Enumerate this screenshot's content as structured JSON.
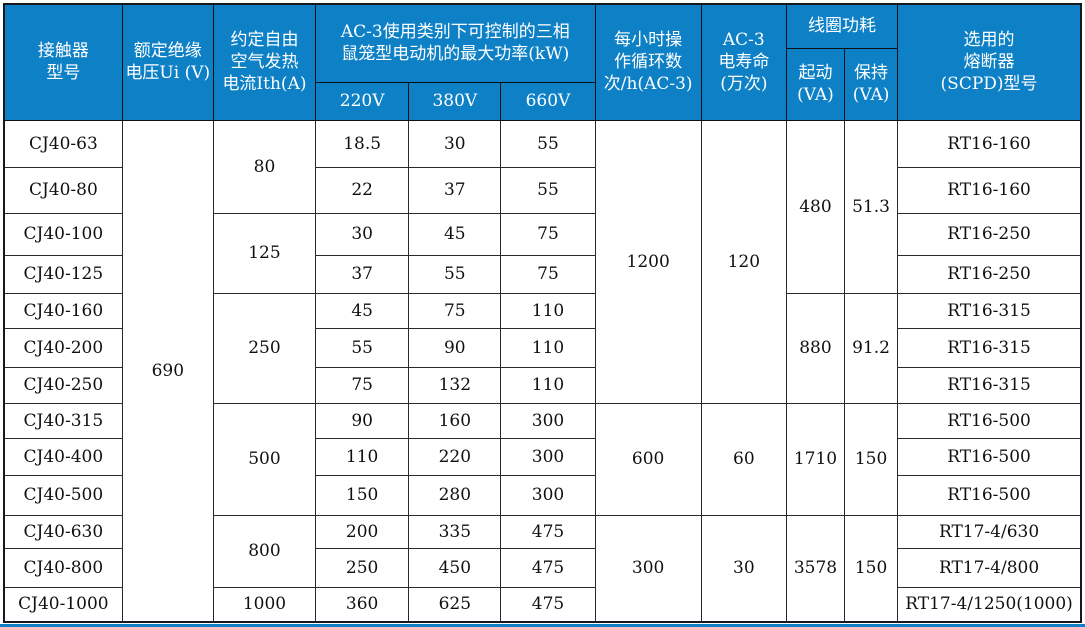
{
  "colors": {
    "header_bg": "#0e81c6",
    "header_text": "#ffffff",
    "grid_line": "#2a2a2a",
    "body_text": "#101010",
    "bottom_accent_line": "#0e81c6"
  },
  "table": {
    "title_semantic": "CJ40 contactor specification table",
    "header": [
      [
        {
          "text": "接触器\n型号",
          "rowspan": 3,
          "name": "col-contactor-model"
        },
        {
          "text": "额定绝缘\n电压Ui (V)",
          "rowspan": 3,
          "name": "col-rated-insulation-voltage"
        },
        {
          "text": "约定自由\n空气发热\n电流Ith(A)",
          "rowspan": 3,
          "name": "col-conventional-thermal-current"
        },
        {
          "text": "AC-3使用类别下可控制的三相\n鼠笼型电动机的最大功率(kW)",
          "colspan": 3,
          "rowspan": 2,
          "name": "col-max-motor-power-group"
        },
        {
          "text": "每小时操\n作循环数\n次/h(AC-3)",
          "rowspan": 3,
          "name": "col-operating-cycles-per-hour"
        },
        {
          "text": "AC-3\n电寿命\n(万次)",
          "rowspan": 3,
          "name": "col-electrical-life"
        },
        {
          "text": "线圈功耗",
          "colspan": 2,
          "name": "col-coil-power-group"
        },
        {
          "text": "选用的\n熔断器\n(SCPD)型号",
          "rowspan": 3,
          "name": "col-fuse-scpd-model"
        }
      ],
      [
        {
          "text": "起动\n(VA)",
          "rowspan": 2,
          "name": "col-coil-starting-va"
        },
        {
          "text": "保持\n(VA)",
          "rowspan": 2,
          "name": "col-coil-holding-va"
        }
      ],
      [
        {
          "text": "220V",
          "name": "col-220v"
        },
        {
          "text": "380V",
          "name": "col-380v"
        },
        {
          "text": "660V",
          "name": "col-660v"
        }
      ]
    ],
    "body": [
      [
        {
          "text": "CJ40-63"
        },
        {
          "text": "690",
          "rowspan": 13
        },
        {
          "text": "80",
          "rowspan": 2
        },
        {
          "text": "18.5"
        },
        {
          "text": "30"
        },
        {
          "text": "55"
        },
        {
          "text": "1200",
          "rowspan": 7
        },
        {
          "text": "120",
          "rowspan": 7
        },
        {
          "text": "480",
          "rowspan": 4
        },
        {
          "text": "51.3",
          "rowspan": 4
        },
        {
          "text": "RT16-160"
        }
      ],
      [
        {
          "text": "CJ40-80"
        },
        {
          "text": "22"
        },
        {
          "text": "37"
        },
        {
          "text": "55"
        },
        {
          "text": "RT16-160"
        }
      ],
      [
        {
          "text": "CJ40-100"
        },
        {
          "text": "125",
          "rowspan": 2
        },
        {
          "text": "30"
        },
        {
          "text": "45"
        },
        {
          "text": "75"
        },
        {
          "text": "RT16-250"
        }
      ],
      [
        {
          "text": "CJ40-125"
        },
        {
          "text": "37"
        },
        {
          "text": "55"
        },
        {
          "text": "75"
        },
        {
          "text": "RT16-250"
        }
      ],
      [
        {
          "text": "CJ40-160"
        },
        {
          "text": "250",
          "rowspan": 3
        },
        {
          "text": "45"
        },
        {
          "text": "75"
        },
        {
          "text": "110"
        },
        {
          "text": "880",
          "rowspan": 3
        },
        {
          "text": "91.2",
          "rowspan": 3
        },
        {
          "text": "RT16-315"
        }
      ],
      [
        {
          "text": "CJ40-200"
        },
        {
          "text": "55"
        },
        {
          "text": "90"
        },
        {
          "text": "110"
        },
        {
          "text": "RT16-315"
        }
      ],
      [
        {
          "text": "CJ40-250"
        },
        {
          "text": "75"
        },
        {
          "text": "132"
        },
        {
          "text": "110"
        },
        {
          "text": "RT16-315"
        }
      ],
      [
        {
          "text": "CJ40-315"
        },
        {
          "text": "500",
          "rowspan": 3
        },
        {
          "text": "90"
        },
        {
          "text": "160"
        },
        {
          "text": "300"
        },
        {
          "text": "600",
          "rowspan": 3
        },
        {
          "text": "60",
          "rowspan": 3
        },
        {
          "text": "1710",
          "rowspan": 3
        },
        {
          "text": "150",
          "rowspan": 3
        },
        {
          "text": "RT16-500"
        }
      ],
      [
        {
          "text": "CJ40-400"
        },
        {
          "text": "110"
        },
        {
          "text": "220"
        },
        {
          "text": "300"
        },
        {
          "text": "RT16-500"
        }
      ],
      [
        {
          "text": "CJ40-500"
        },
        {
          "text": "150"
        },
        {
          "text": "280"
        },
        {
          "text": "300"
        },
        {
          "text": "RT16-500"
        }
      ],
      [
        {
          "text": "CJ40-630"
        },
        {
          "text": "800",
          "rowspan": 2
        },
        {
          "text": "200"
        },
        {
          "text": "335"
        },
        {
          "text": "475"
        },
        {
          "text": "300",
          "rowspan": 3
        },
        {
          "text": "30",
          "rowspan": 3
        },
        {
          "text": "3578",
          "rowspan": 3
        },
        {
          "text": "150",
          "rowspan": 3
        },
        {
          "text": "RT17-4/630"
        }
      ],
      [
        {
          "text": "CJ40-800"
        },
        {
          "text": "250"
        },
        {
          "text": "450"
        },
        {
          "text": "475"
        },
        {
          "text": "RT17-4/800"
        }
      ],
      [
        {
          "text": "CJ40-1000"
        },
        {
          "text": "1000"
        },
        {
          "text": "360"
        },
        {
          "text": "625"
        },
        {
          "text": "475"
        },
        {
          "text": "RT17-4/1250(1000)"
        }
      ]
    ]
  }
}
